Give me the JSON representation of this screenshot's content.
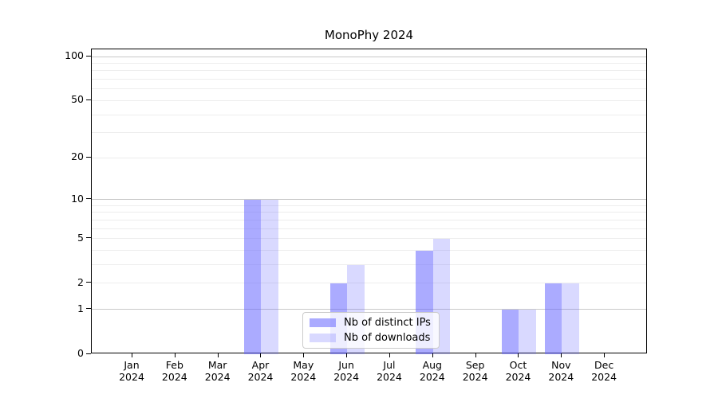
{
  "title": "MonoPhy 2024",
  "chart_data": {
    "type": "bar",
    "title": "MonoPhy 2024",
    "categories": [
      "Jan 2024",
      "Feb 2024",
      "Mar 2024",
      "Apr 2024",
      "May 2024",
      "Jun 2024",
      "Jul 2024",
      "Aug 2024",
      "Sep 2024",
      "Oct 2024",
      "Nov 2024",
      "Dec 2024"
    ],
    "series": [
      {
        "name": "Nb of distinct IPs",
        "color": "rgba(102,102,255,0.55)",
        "values": [
          0,
          0,
          0,
          10,
          0,
          2,
          0,
          4,
          0,
          1,
          2,
          0
        ]
      },
      {
        "name": "Nb of downloads",
        "color": "rgba(102,102,255,0.25)",
        "values": [
          0,
          0,
          0,
          10,
          0,
          3,
          0,
          5,
          0,
          1,
          2,
          0
        ]
      }
    ],
    "yscale": "log1p",
    "ylim": [
      0,
      112
    ],
    "yticks": [
      0,
      1,
      2,
      5,
      10,
      20,
      50,
      100
    ],
    "minor_gridlines": [
      2,
      3,
      4,
      5,
      6,
      7,
      8,
      9,
      20,
      30,
      40,
      50,
      60,
      70,
      80,
      90
    ],
    "major_gridlines": [
      1,
      10,
      100
    ],
    "grid": "both",
    "legend_position": "lower center",
    "colors": {
      "bar_distinct_ips": "rgba(102,102,255,0.55)",
      "bar_downloads": "rgba(102,102,255,0.25)",
      "major_grid": "#c8c8c8",
      "minor_grid": "#ededed",
      "axis": "#000000",
      "background": "#ffffff"
    }
  }
}
